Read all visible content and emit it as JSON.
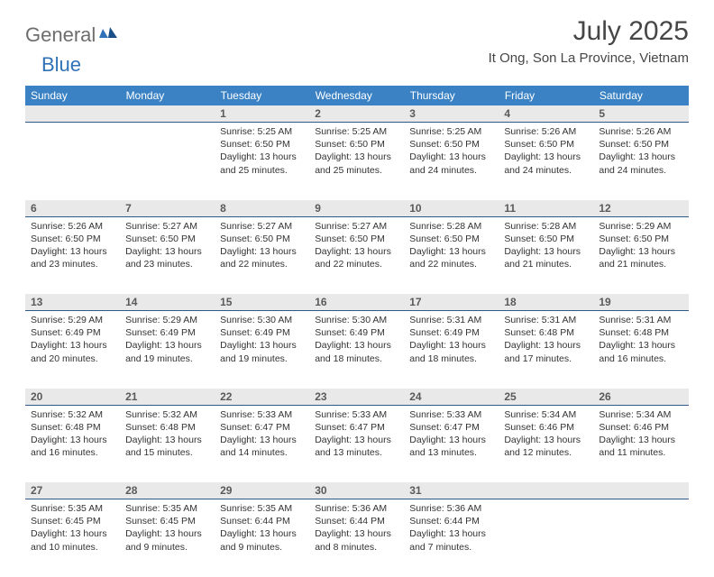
{
  "brand": {
    "part1": "General",
    "part2": "Blue"
  },
  "title": "July 2025",
  "location": "It Ong, Son La Province, Vietnam",
  "colors": {
    "header_bg": "#3a82c4",
    "header_text": "#ffffff",
    "daynum_bg": "#e9e9e9",
    "daynum_border": "#2f5a88",
    "body_text": "#333333",
    "title_text": "#464646",
    "logo_gray": "#6d6d6d",
    "logo_blue": "#2f72b8"
  },
  "typography": {
    "title_fontsize": 30,
    "location_fontsize": 15,
    "dayheader_fontsize": 12,
    "daynum_fontsize": 12,
    "cell_fontsize": 10.5
  },
  "day_headers": [
    "Sunday",
    "Monday",
    "Tuesday",
    "Wednesday",
    "Thursday",
    "Friday",
    "Saturday"
  ],
  "weeks": [
    [
      null,
      null,
      {
        "n": "1",
        "sr": "5:25 AM",
        "ss": "6:50 PM",
        "dl": "13 hours and 25 minutes."
      },
      {
        "n": "2",
        "sr": "5:25 AM",
        "ss": "6:50 PM",
        "dl": "13 hours and 25 minutes."
      },
      {
        "n": "3",
        "sr": "5:25 AM",
        "ss": "6:50 PM",
        "dl": "13 hours and 24 minutes."
      },
      {
        "n": "4",
        "sr": "5:26 AM",
        "ss": "6:50 PM",
        "dl": "13 hours and 24 minutes."
      },
      {
        "n": "5",
        "sr": "5:26 AM",
        "ss": "6:50 PM",
        "dl": "13 hours and 24 minutes."
      }
    ],
    [
      {
        "n": "6",
        "sr": "5:26 AM",
        "ss": "6:50 PM",
        "dl": "13 hours and 23 minutes."
      },
      {
        "n": "7",
        "sr": "5:27 AM",
        "ss": "6:50 PM",
        "dl": "13 hours and 23 minutes."
      },
      {
        "n": "8",
        "sr": "5:27 AM",
        "ss": "6:50 PM",
        "dl": "13 hours and 22 minutes."
      },
      {
        "n": "9",
        "sr": "5:27 AM",
        "ss": "6:50 PM",
        "dl": "13 hours and 22 minutes."
      },
      {
        "n": "10",
        "sr": "5:28 AM",
        "ss": "6:50 PM",
        "dl": "13 hours and 22 minutes."
      },
      {
        "n": "11",
        "sr": "5:28 AM",
        "ss": "6:50 PM",
        "dl": "13 hours and 21 minutes."
      },
      {
        "n": "12",
        "sr": "5:29 AM",
        "ss": "6:50 PM",
        "dl": "13 hours and 21 minutes."
      }
    ],
    [
      {
        "n": "13",
        "sr": "5:29 AM",
        "ss": "6:49 PM",
        "dl": "13 hours and 20 minutes."
      },
      {
        "n": "14",
        "sr": "5:29 AM",
        "ss": "6:49 PM",
        "dl": "13 hours and 19 minutes."
      },
      {
        "n": "15",
        "sr": "5:30 AM",
        "ss": "6:49 PM",
        "dl": "13 hours and 19 minutes."
      },
      {
        "n": "16",
        "sr": "5:30 AM",
        "ss": "6:49 PM",
        "dl": "13 hours and 18 minutes."
      },
      {
        "n": "17",
        "sr": "5:31 AM",
        "ss": "6:49 PM",
        "dl": "13 hours and 18 minutes."
      },
      {
        "n": "18",
        "sr": "5:31 AM",
        "ss": "6:48 PM",
        "dl": "13 hours and 17 minutes."
      },
      {
        "n": "19",
        "sr": "5:31 AM",
        "ss": "6:48 PM",
        "dl": "13 hours and 16 minutes."
      }
    ],
    [
      {
        "n": "20",
        "sr": "5:32 AM",
        "ss": "6:48 PM",
        "dl": "13 hours and 16 minutes."
      },
      {
        "n": "21",
        "sr": "5:32 AM",
        "ss": "6:48 PM",
        "dl": "13 hours and 15 minutes."
      },
      {
        "n": "22",
        "sr": "5:33 AM",
        "ss": "6:47 PM",
        "dl": "13 hours and 14 minutes."
      },
      {
        "n": "23",
        "sr": "5:33 AM",
        "ss": "6:47 PM",
        "dl": "13 hours and 13 minutes."
      },
      {
        "n": "24",
        "sr": "5:33 AM",
        "ss": "6:47 PM",
        "dl": "13 hours and 13 minutes."
      },
      {
        "n": "25",
        "sr": "5:34 AM",
        "ss": "6:46 PM",
        "dl": "13 hours and 12 minutes."
      },
      {
        "n": "26",
        "sr": "5:34 AM",
        "ss": "6:46 PM",
        "dl": "13 hours and 11 minutes."
      }
    ],
    [
      {
        "n": "27",
        "sr": "5:35 AM",
        "ss": "6:45 PM",
        "dl": "13 hours and 10 minutes."
      },
      {
        "n": "28",
        "sr": "5:35 AM",
        "ss": "6:45 PM",
        "dl": "13 hours and 9 minutes."
      },
      {
        "n": "29",
        "sr": "5:35 AM",
        "ss": "6:44 PM",
        "dl": "13 hours and 9 minutes."
      },
      {
        "n": "30",
        "sr": "5:36 AM",
        "ss": "6:44 PM",
        "dl": "13 hours and 8 minutes."
      },
      {
        "n": "31",
        "sr": "5:36 AM",
        "ss": "6:44 PM",
        "dl": "13 hours and 7 minutes."
      },
      null,
      null
    ]
  ],
  "labels": {
    "sunrise": "Sunrise:",
    "sunset": "Sunset:",
    "daylight": "Daylight:"
  }
}
